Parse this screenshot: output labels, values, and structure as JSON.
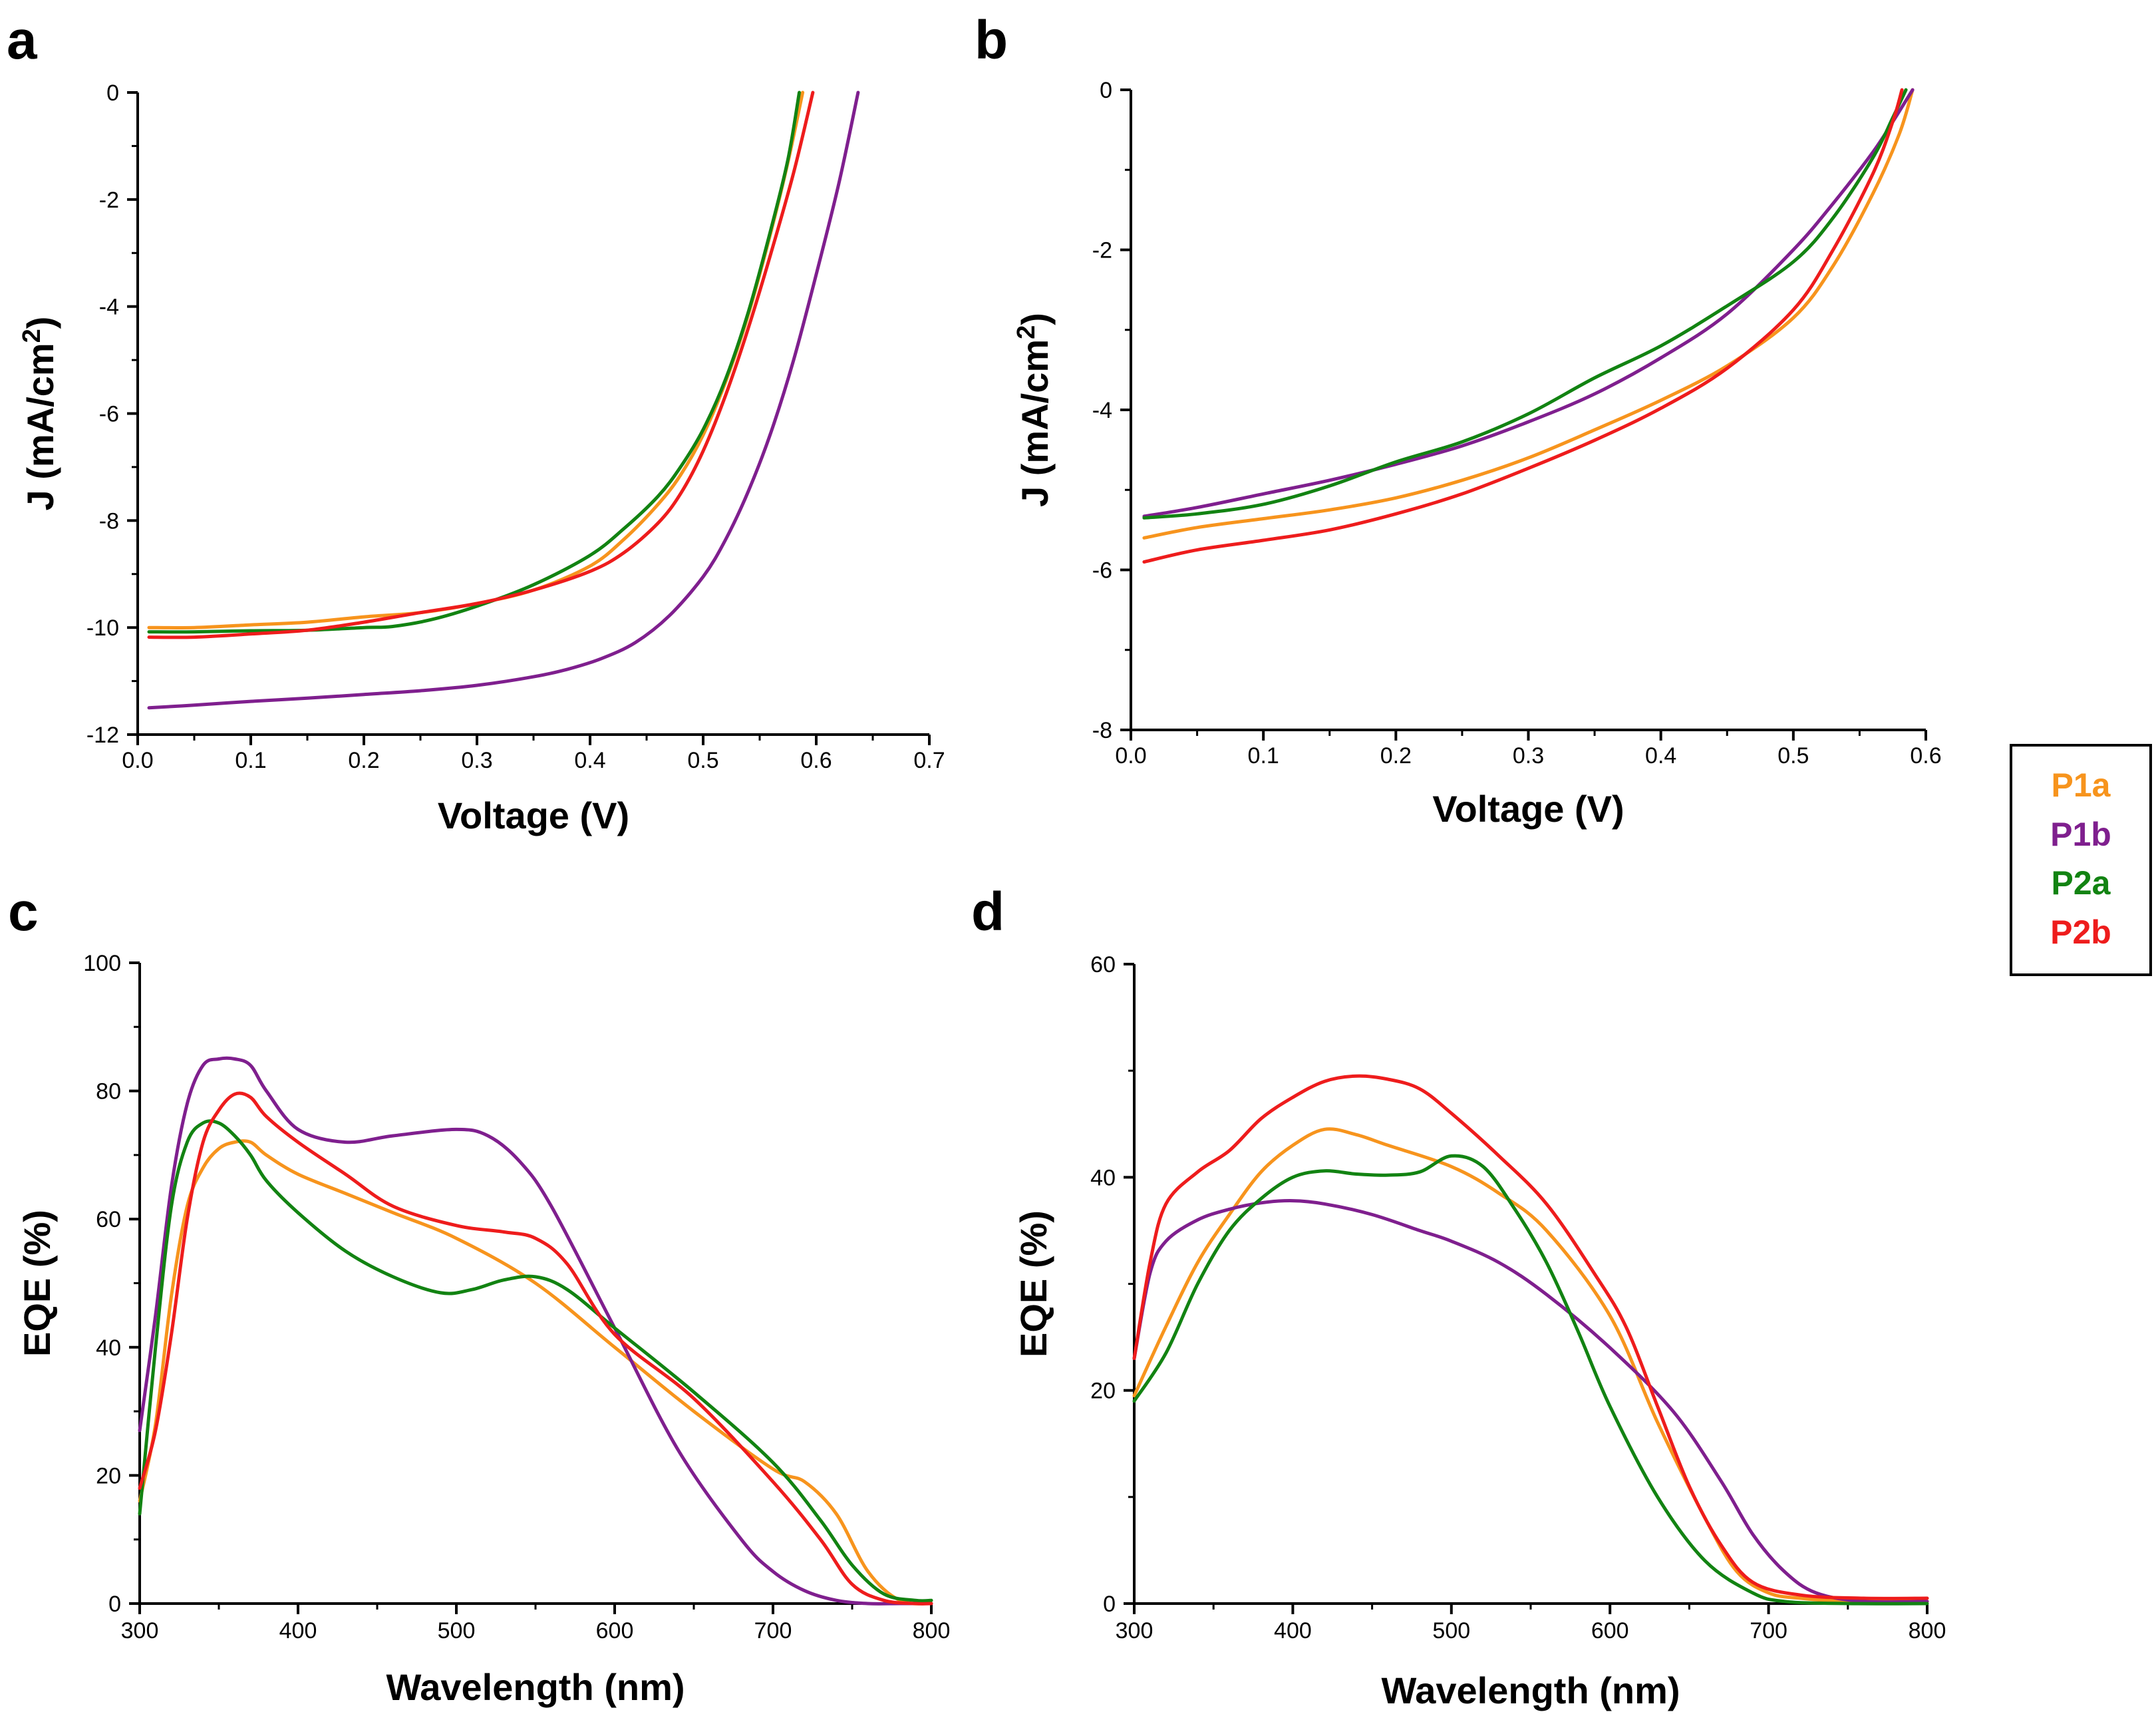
{
  "legend": {
    "entries": [
      {
        "name": "P1a",
        "color": "#f7941d"
      },
      {
        "name": "P1b",
        "color": "#7f1f8e"
      },
      {
        "name": "P2a",
        "color": "#128312"
      },
      {
        "name": "P2b",
        "color": "#ee1c1c"
      }
    ]
  },
  "chart_data": [
    {
      "panel": "a",
      "type": "line",
      "xlabel": "Voltage (V)",
      "ylabel": "J (mA/cm2)",
      "ylabel_base": "J (mA/cm",
      "ylabel_sup": "2",
      "ylabel_tail": ")",
      "xlim": [
        0,
        0.7
      ],
      "ylim": [
        -12,
        0
      ],
      "xticks": [
        0.0,
        0.1,
        0.2,
        0.3,
        0.4,
        0.5,
        0.6,
        0.7
      ],
      "xtick_labels": [
        "0.0",
        "0.1",
        "0.2",
        "0.3",
        "0.4",
        "0.5",
        "0.6",
        "0.7"
      ],
      "yticks": [
        -12,
        -10,
        -8,
        -6,
        -4,
        -2,
        0
      ],
      "ytick_labels": [
        "-12",
        "-10",
        "-8",
        "-6",
        "-4",
        "-2",
        "0"
      ],
      "series": [
        {
          "name": "P1a",
          "color": "#f7941d",
          "x": [
            0.01,
            0.05,
            0.1,
            0.15,
            0.2,
            0.25,
            0.3,
            0.35,
            0.4,
            0.43,
            0.46,
            0.48,
            0.5,
            0.52,
            0.54,
            0.56,
            0.575,
            0.588
          ],
          "y": [
            -10.0,
            -10.0,
            -9.95,
            -9.9,
            -9.8,
            -9.72,
            -9.55,
            -9.3,
            -8.85,
            -8.35,
            -7.7,
            -7.15,
            -6.4,
            -5.4,
            -4.15,
            -2.6,
            -1.3,
            0.0
          ]
        },
        {
          "name": "P1b",
          "color": "#7f1f8e",
          "x": [
            0.01,
            0.05,
            0.1,
            0.15,
            0.2,
            0.25,
            0.3,
            0.35,
            0.38,
            0.41,
            0.44,
            0.47,
            0.5,
            0.52,
            0.54,
            0.56,
            0.58,
            0.6,
            0.62,
            0.637
          ],
          "y": [
            -11.5,
            -11.45,
            -11.38,
            -11.32,
            -11.25,
            -11.18,
            -11.08,
            -10.92,
            -10.78,
            -10.58,
            -10.28,
            -9.78,
            -9.05,
            -8.35,
            -7.45,
            -6.35,
            -5.0,
            -3.4,
            -1.7,
            0.0
          ]
        },
        {
          "name": "P2a",
          "color": "#128312",
          "x": [
            0.01,
            0.05,
            0.1,
            0.15,
            0.2,
            0.225,
            0.26,
            0.3,
            0.35,
            0.4,
            0.43,
            0.46,
            0.48,
            0.5,
            0.52,
            0.54,
            0.56,
            0.575,
            0.585
          ],
          "y": [
            -10.08,
            -10.08,
            -10.06,
            -10.05,
            -10.0,
            -9.98,
            -9.85,
            -9.6,
            -9.2,
            -8.65,
            -8.15,
            -7.55,
            -7.0,
            -6.3,
            -5.35,
            -4.1,
            -2.55,
            -1.25,
            0.0
          ]
        },
        {
          "name": "P2b",
          "color": "#ee1c1c",
          "x": [
            0.01,
            0.05,
            0.1,
            0.15,
            0.2,
            0.25,
            0.3,
            0.35,
            0.4,
            0.43,
            0.46,
            0.48,
            0.5,
            0.52,
            0.54,
            0.56,
            0.58,
            0.597
          ],
          "y": [
            -10.18,
            -10.18,
            -10.12,
            -10.05,
            -9.9,
            -9.72,
            -9.55,
            -9.3,
            -8.95,
            -8.6,
            -8.05,
            -7.5,
            -6.7,
            -5.65,
            -4.4,
            -3.0,
            -1.5,
            0.0
          ]
        }
      ]
    },
    {
      "panel": "b",
      "type": "line",
      "xlabel": "Voltage (V)",
      "ylabel": "J (mA/cm2)",
      "ylabel_base": "J (mA/cm",
      "ylabel_sup": "2",
      "ylabel_tail": ")",
      "xlim": [
        0,
        0.6
      ],
      "ylim": [
        -8,
        0
      ],
      "xticks": [
        0.0,
        0.1,
        0.2,
        0.3,
        0.4,
        0.5,
        0.6
      ],
      "xtick_labels": [
        "0.0",
        "0.1",
        "0.2",
        "0.3",
        "0.4",
        "0.5",
        "0.6"
      ],
      "yticks": [
        -8,
        -6,
        -4,
        -2,
        0
      ],
      "ytick_labels": [
        "-8",
        "-6",
        "-4",
        "-2",
        "0"
      ],
      "series": [
        {
          "name": "P1a",
          "color": "#f7941d",
          "x": [
            0.01,
            0.05,
            0.1,
            0.15,
            0.2,
            0.25,
            0.3,
            0.35,
            0.4,
            0.45,
            0.5,
            0.53,
            0.56,
            0.58,
            0.59
          ],
          "y": [
            -5.6,
            -5.47,
            -5.36,
            -5.25,
            -5.1,
            -4.88,
            -4.6,
            -4.25,
            -3.88,
            -3.45,
            -2.85,
            -2.2,
            -1.3,
            -0.55,
            0.0
          ]
        },
        {
          "name": "P1b",
          "color": "#7f1f8e",
          "x": [
            0.01,
            0.05,
            0.1,
            0.15,
            0.2,
            0.25,
            0.3,
            0.35,
            0.4,
            0.45,
            0.5,
            0.53,
            0.56,
            0.575,
            0.59
          ],
          "y": [
            -5.33,
            -5.22,
            -5.05,
            -4.88,
            -4.68,
            -4.45,
            -4.15,
            -3.8,
            -3.35,
            -2.8,
            -2.0,
            -1.42,
            -0.78,
            -0.4,
            0.0
          ]
        },
        {
          "name": "P2a",
          "color": "#128312",
          "x": [
            0.01,
            0.05,
            0.1,
            0.15,
            0.2,
            0.25,
            0.3,
            0.35,
            0.4,
            0.45,
            0.5,
            0.53,
            0.56,
            0.575,
            0.585
          ],
          "y": [
            -5.35,
            -5.3,
            -5.18,
            -4.95,
            -4.65,
            -4.4,
            -4.05,
            -3.6,
            -3.2,
            -2.7,
            -2.15,
            -1.6,
            -0.85,
            -0.35,
            0.0
          ]
        },
        {
          "name": "P2b",
          "color": "#ee1c1c",
          "x": [
            0.01,
            0.05,
            0.1,
            0.15,
            0.2,
            0.25,
            0.3,
            0.35,
            0.4,
            0.45,
            0.5,
            0.53,
            0.56,
            0.575,
            0.582
          ],
          "y": [
            -5.9,
            -5.75,
            -5.63,
            -5.5,
            -5.3,
            -5.05,
            -4.73,
            -4.38,
            -3.98,
            -3.48,
            -2.75,
            -2.0,
            -1.05,
            -0.4,
            0.0
          ]
        }
      ]
    },
    {
      "panel": "c",
      "type": "line",
      "xlabel": "Wavelength (nm)",
      "ylabel": "EQE (%)",
      "xlim": [
        300,
        800
      ],
      "ylim": [
        0,
        100
      ],
      "xticks": [
        300,
        400,
        500,
        600,
        700,
        800
      ],
      "xtick_labels": [
        "300",
        "400",
        "500",
        "600",
        "700",
        "800"
      ],
      "yticks": [
        0,
        20,
        40,
        60,
        80,
        100
      ],
      "ytick_labels": [
        "0",
        "20",
        "40",
        "60",
        "80",
        "100"
      ],
      "series": [
        {
          "name": "P1a",
          "color": "#f7941d",
          "x": [
            300,
            310,
            320,
            330,
            340,
            350,
            360,
            370,
            380,
            400,
            430,
            460,
            500,
            550,
            600,
            650,
            700,
            720,
            740,
            760,
            780,
            800
          ],
          "y": [
            16,
            28,
            48,
            62,
            68,
            71,
            72,
            72,
            70,
            67,
            64,
            61,
            57,
            50,
            40,
            30,
            21,
            19,
            14,
            5,
            0.5,
            0
          ]
        },
        {
          "name": "P1b",
          "color": "#7f1f8e",
          "x": [
            300,
            310,
            320,
            330,
            340,
            350,
            360,
            370,
            380,
            400,
            430,
            460,
            500,
            520,
            540,
            560,
            600,
            640,
            680,
            700,
            720,
            740,
            760,
            780,
            800
          ],
          "y": [
            27,
            45,
            65,
            78,
            84,
            85,
            85,
            84,
            80,
            74,
            72,
            73,
            74,
            73,
            69,
            62,
            43,
            24,
            10,
            5,
            2,
            0.5,
            0,
            0,
            0
          ]
        },
        {
          "name": "P2a",
          "color": "#128312",
          "x": [
            300,
            310,
            320,
            330,
            340,
            350,
            360,
            370,
            380,
            400,
            430,
            460,
            490,
            510,
            530,
            550,
            570,
            600,
            650,
            700,
            730,
            750,
            770,
            790,
            800
          ],
          "y": [
            14,
            40,
            62,
            72,
            75,
            75,
            73,
            70,
            66,
            61,
            55,
            51,
            48.5,
            49,
            50.5,
            51,
            49,
            43,
            33,
            22,
            13,
            6,
            1.5,
            0.5,
            0.5
          ]
        },
        {
          "name": "P2b",
          "color": "#ee1c1c",
          "x": [
            300,
            310,
            320,
            330,
            340,
            350,
            360,
            370,
            380,
            400,
            430,
            460,
            500,
            530,
            550,
            570,
            600,
            650,
            700,
            730,
            750,
            770,
            790,
            800
          ],
          "y": [
            18,
            27,
            42,
            60,
            72,
            77,
            79.5,
            79,
            76,
            72,
            67,
            62,
            59,
            58,
            57,
            53,
            42,
            32,
            19,
            10,
            3,
            0.5,
            0,
            0
          ]
        }
      ]
    },
    {
      "panel": "d",
      "type": "line",
      "xlabel": "Wavelength (nm)",
      "ylabel": "EQE (%)",
      "xlim": [
        300,
        800
      ],
      "ylim": [
        0,
        60
      ],
      "xticks": [
        300,
        400,
        500,
        600,
        700,
        800
      ],
      "xtick_labels": [
        "300",
        "400",
        "500",
        "600",
        "700",
        "800"
      ],
      "yticks": [
        0,
        20,
        40,
        60
      ],
      "ytick_labels": [
        "0",
        "20",
        "40",
        "60"
      ],
      "series": [
        {
          "name": "P1a",
          "color": "#f7941d",
          "x": [
            300,
            320,
            340,
            360,
            380,
            400,
            420,
            440,
            460,
            500,
            530,
            560,
            600,
            630,
            660,
            680,
            700,
            720,
            750,
            800
          ],
          "y": [
            19.5,
            26,
            32,
            36.5,
            40.5,
            43,
            44.5,
            44,
            43,
            41,
            38.5,
            35,
            27,
            17,
            8,
            3,
            1,
            0.5,
            0.2,
            0.2
          ]
        },
        {
          "name": "P1b",
          "color": "#7f1f8e",
          "x": [
            300,
            310,
            320,
            340,
            360,
            380,
            400,
            420,
            450,
            480,
            500,
            530,
            560,
            600,
            640,
            670,
            690,
            710,
            730,
            760,
            800
          ],
          "y": [
            23,
            31,
            34,
            36,
            37,
            37.6,
            37.8,
            37.5,
            36.5,
            35,
            34,
            32,
            29,
            24,
            18,
            11.5,
            6.5,
            3,
            1,
            0.2,
            0.2
          ]
        },
        {
          "name": "P2a",
          "color": "#128312",
          "x": [
            300,
            320,
            340,
            360,
            380,
            400,
            420,
            440,
            460,
            480,
            500,
            520,
            540,
            560,
            580,
            600,
            630,
            660,
            690,
            710,
            750,
            800
          ],
          "y": [
            19,
            23.5,
            30,
            35,
            38,
            40,
            40.6,
            40.3,
            40.2,
            40.5,
            42,
            41,
            37,
            32,
            25.5,
            18.5,
            10,
            4,
            1,
            0.2,
            0,
            0
          ]
        },
        {
          "name": "P2b",
          "color": "#ee1c1c",
          "x": [
            300,
            310,
            320,
            340,
            360,
            380,
            400,
            420,
            440,
            460,
            480,
            500,
            530,
            560,
            590,
            610,
            630,
            650,
            670,
            690,
            720,
            760,
            800
          ],
          "y": [
            23,
            32,
            37.5,
            40.5,
            42.5,
            45.5,
            47.5,
            49,
            49.5,
            49.2,
            48.3,
            46,
            42,
            37.5,
            31,
            26,
            18.5,
            11,
            5.5,
            2,
            0.8,
            0.5,
            0.5
          ]
        }
      ]
    }
  ]
}
